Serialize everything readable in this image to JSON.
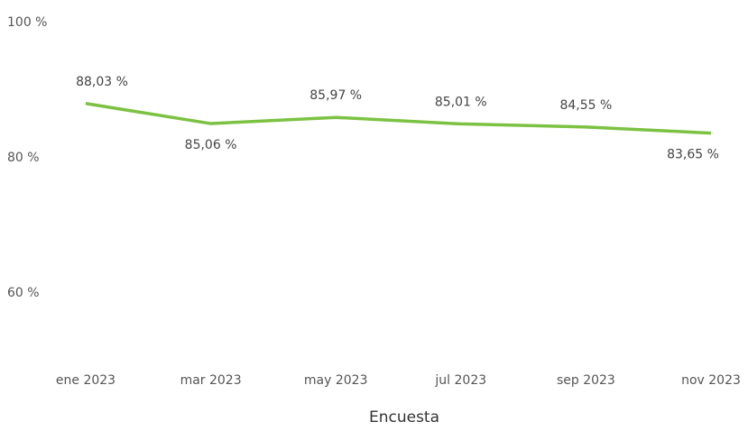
{
  "chart_data": {
    "type": "line",
    "x_label": "Encuesta",
    "categories": [
      "ene 2023",
      "mar 2023",
      "may 2023",
      "jul 2023",
      "sep 2023",
      "nov 2023"
    ],
    "series": [
      {
        "name": "Encuesta",
        "color": "#7cc242",
        "values": [
          88.03,
          85.06,
          85.97,
          85.01,
          84.55,
          83.65
        ],
        "value_labels": [
          "88,03 %",
          "85,06 %",
          "85,97 %",
          "85,01 %",
          "84,55 %",
          "83,65 %"
        ]
      }
    ],
    "ylim": [
      50,
      100
    ],
    "yticks": [
      {
        "value": 60,
        "label": "60 %"
      },
      {
        "value": 80,
        "label": "80 %"
      },
      {
        "value": 100,
        "label": "100 %"
      }
    ],
    "grid": false
  }
}
